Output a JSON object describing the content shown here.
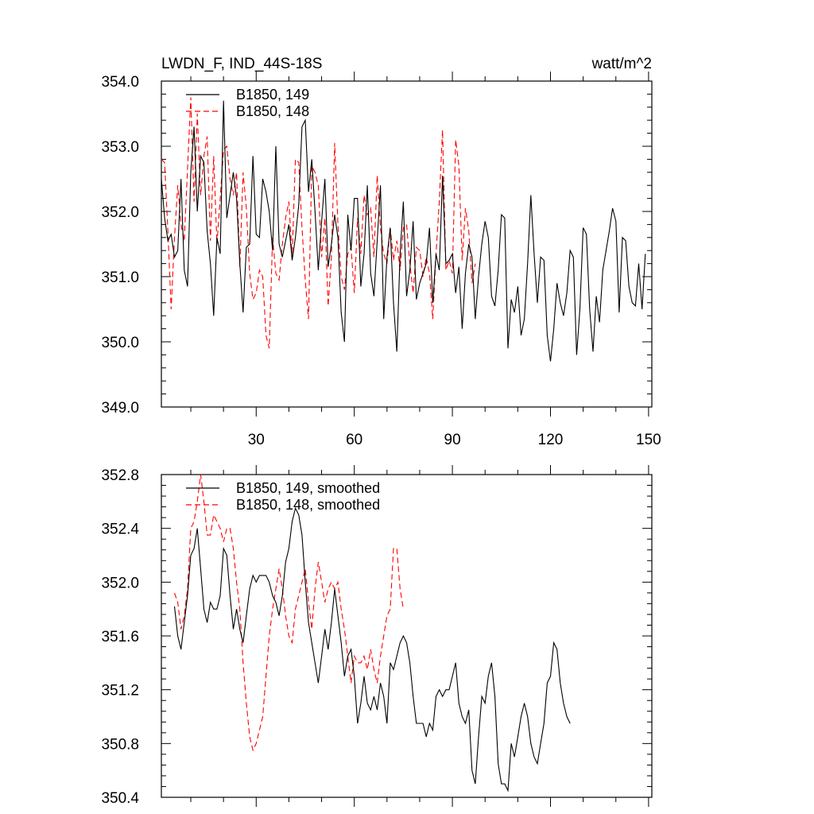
{
  "header": {
    "title": "LWDN_F, IND_44S-18S",
    "units": "watt/m^2"
  },
  "chart_data": [
    {
      "type": "line",
      "xlim": [
        1,
        151
      ],
      "ylim": [
        349.0,
        354.0
      ],
      "x_ticks": [
        30,
        60,
        90,
        120,
        150
      ],
      "x_tick_labels": [
        "30",
        "60",
        "90",
        "120",
        "150"
      ],
      "y_ticks": [
        349.0,
        350.0,
        351.0,
        352.0,
        353.0,
        354.0
      ],
      "y_tick_labels": [
        "349.0",
        "350.0",
        "351.0",
        "352.0",
        "353.0",
        "354.0"
      ],
      "legend_position": "top-left",
      "series": [
        {
          "name": "B1850, 149",
          "color": "#000000",
          "dash": "solid",
          "start_x": 1,
          "values": [
            352.5,
            351.9,
            351.55,
            351.65,
            351.3,
            351.4,
            352.5,
            351.1,
            350.85,
            352.6,
            353.3,
            352.0,
            352.85,
            352.75,
            351.7,
            351.2,
            350.4,
            351.6,
            351.35,
            353.7,
            351.9,
            352.25,
            352.6,
            352.2,
            351.2,
            350.45,
            351.45,
            351.5,
            352.85,
            351.65,
            351.6,
            352.5,
            352.3,
            352.0,
            351.4,
            353.0,
            351.5,
            351.3,
            351.55,
            351.8,
            351.25,
            351.6,
            352.1,
            353.3,
            353.4,
            352.3,
            352.8,
            352.0,
            351.1,
            351.85,
            352.5,
            351.15,
            351.5,
            351.95,
            351.6,
            350.45,
            350.0,
            351.95,
            351.4,
            352.2,
            352.2,
            350.85,
            351.35,
            352.4,
            351.05,
            350.7,
            351.55,
            352.4,
            350.35,
            351.3,
            351.75,
            350.6,
            349.85,
            351.35,
            352.15,
            350.7,
            351.1,
            351.85,
            350.65,
            350.9,
            351.05,
            351.2,
            351.75,
            350.6,
            351.35,
            351.1,
            352.55,
            351.2,
            351.25,
            351.35,
            350.75,
            351.15,
            350.2,
            351.05,
            351.5,
            351.3,
            350.35,
            351.0,
            351.5,
            351.85,
            351.6,
            350.7,
            350.55,
            351.1,
            351.95,
            351.9,
            349.9,
            350.65,
            350.45,
            350.85,
            350.1,
            350.35,
            351.2,
            352.25,
            351.35,
            350.6,
            351.3,
            351.25,
            350.1,
            349.7,
            350.2,
            350.9,
            350.6,
            350.4,
            350.75,
            351.4,
            351.3,
            349.8,
            350.5,
            351.75,
            351.65,
            350.5,
            349.85,
            350.7,
            350.3,
            351.1,
            351.4,
            351.7,
            352.05,
            351.85,
            350.45,
            351.6,
            351.55,
            350.85,
            350.6,
            350.55,
            351.2,
            350.5,
            351.35
          ]
        },
        {
          "name": "B1850, 148",
          "color": "#ff0000",
          "dash": "dashed",
          "start_x": 1,
          "values": [
            352.8,
            352.75,
            351.7,
            350.5,
            351.6,
            352.4,
            351.8,
            351.55,
            352.65,
            353.75,
            352.15,
            353.5,
            352.25,
            352.85,
            353.15,
            351.55,
            352.85,
            351.5,
            352.2,
            352.95,
            353.0,
            352.5,
            352.25,
            352.6,
            351.15,
            352.6,
            352.05,
            351.05,
            350.65,
            350.75,
            351.1,
            351.0,
            350.1,
            349.9,
            351.6,
            351.05,
            350.95,
            351.5,
            351.9,
            352.15,
            351.3,
            352.8,
            352.75,
            351.75,
            350.95,
            350.35,
            352.7,
            352.6,
            352.4,
            351.3,
            351.9,
            350.55,
            351.3,
            353.05,
            351.8,
            351.0,
            350.8,
            351.35,
            351.45,
            350.75,
            351.9,
            351.35,
            352.25,
            351.95,
            352.05,
            351.3,
            352.55,
            351.75,
            351.35,
            351.2,
            351.75,
            351.25,
            351.55,
            351.1,
            351.75,
            351.8,
            351.2,
            350.75,
            351.45,
            351.4,
            351.0,
            351.3,
            351.05,
            350.35,
            351.35,
            352.15,
            353.25,
            351.1,
            351.25,
            351.05,
            353.1,
            352.7,
            351.25,
            352.05,
            351.7,
            350.9,
            351.2
          ]
        }
      ]
    },
    {
      "type": "line",
      "xlim": [
        1,
        151
      ],
      "ylim": [
        350.4,
        352.8
      ],
      "x_ticks": [
        30,
        60,
        90,
        120,
        150
      ],
      "y_ticks": [
        350.4,
        350.8,
        351.2,
        351.6,
        352.0,
        352.4,
        352.8
      ],
      "y_tick_labels": [
        "350.4",
        "350.8",
        "351.2",
        "351.6",
        "352.0",
        "352.4",
        "352.8"
      ],
      "legend_position": "top-left",
      "series": [
        {
          "name": "B1850, 149, smoothed",
          "color": "#000000",
          "dash": "solid",
          "start_x": 5,
          "values": [
            351.82,
            351.6,
            351.5,
            351.7,
            351.9,
            352.2,
            352.25,
            352.4,
            352.1,
            351.8,
            351.7,
            351.85,
            351.8,
            351.8,
            351.9,
            352.25,
            352.2,
            351.9,
            351.65,
            351.8,
            351.65,
            351.55,
            351.75,
            351.95,
            352.05,
            352.0,
            352.05,
            352.05,
            352.05,
            352.0,
            351.9,
            351.85,
            351.75,
            351.9,
            352.15,
            352.25,
            352.45,
            352.55,
            352.5,
            352.35,
            352.0,
            351.7,
            351.55,
            351.4,
            351.25,
            351.45,
            351.65,
            351.5,
            351.7,
            351.95,
            351.75,
            351.55,
            351.3,
            351.45,
            351.5,
            351.3,
            350.95,
            351.1,
            351.3,
            351.1,
            351.05,
            351.15,
            351.05,
            351.25,
            351.15,
            350.95,
            351.4,
            351.35,
            351.45,
            351.55,
            351.6,
            351.55,
            351.4,
            351.15,
            350.95,
            350.95,
            350.95,
            350.85,
            350.95,
            350.9,
            351.15,
            351.2,
            351.15,
            351.2,
            351.2,
            351.3,
            351.4,
            351.1,
            351.0,
            350.95,
            351.05,
            350.6,
            350.5,
            350.85,
            351.15,
            351.1,
            351.3,
            351.4,
            351.15,
            350.65,
            350.5,
            350.5,
            350.45,
            350.8,
            350.7,
            350.85,
            351.0,
            351.1,
            351.0,
            350.8,
            350.7,
            350.65,
            350.8,
            350.95,
            351.25,
            351.3,
            351.55,
            351.5,
            351.25,
            351.1,
            351.0,
            350.95
          ]
        },
        {
          "name": "B1850, 148, smoothed",
          "color": "#ff0000",
          "dash": "dashed",
          "start_x": 5,
          "values": [
            351.92,
            351.85,
            351.65,
            351.75,
            351.95,
            352.4,
            352.45,
            352.6,
            352.8,
            352.6,
            352.35,
            352.35,
            352.5,
            352.45,
            352.4,
            352.3,
            352.4,
            352.4,
            352.25,
            352.0,
            351.8,
            351.4,
            351.1,
            350.85,
            350.75,
            350.8,
            350.9,
            351.0,
            351.3,
            351.6,
            351.8,
            351.95,
            352.1,
            351.95,
            351.75,
            351.6,
            351.55,
            351.8,
            351.9,
            352.0,
            352.1,
            351.85,
            351.65,
            351.95,
            352.15,
            352.0,
            351.85,
            351.95,
            352.0,
            351.95,
            352.0,
            351.8,
            351.65,
            351.45,
            351.25,
            351.45,
            351.4,
            351.4,
            351.45,
            351.35,
            351.5,
            351.35,
            351.25,
            351.45,
            351.6,
            351.75,
            351.8,
            352.25,
            352.25,
            351.95,
            351.8
          ]
        }
      ]
    }
  ]
}
